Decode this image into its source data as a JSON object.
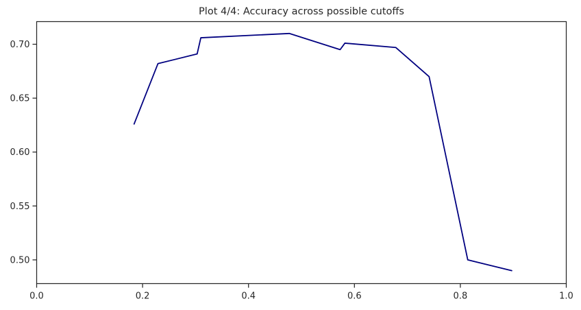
{
  "chart_data": {
    "type": "line",
    "title": "Plot 4/4: Accuracy across possible cutoffs",
    "xlabel": "",
    "ylabel": "",
    "xlim": [
      0.0,
      1.0
    ],
    "ylim": [
      0.478,
      0.721
    ],
    "grid": false,
    "x_ticks": [
      0.0,
      0.2,
      0.4,
      0.6,
      0.8,
      1.0
    ],
    "x_tick_labels": [
      "0.0",
      "0.2",
      "0.4",
      "0.6",
      "0.8",
      "1.0"
    ],
    "y_ticks": [
      0.5,
      0.55,
      0.6,
      0.65,
      0.7
    ],
    "y_tick_labels": [
      "0.50",
      "0.55",
      "0.60",
      "0.65",
      "0.70"
    ],
    "series": [
      {
        "color": "#000080",
        "x": [
          0.184,
          0.229,
          0.303,
          0.31,
          0.477,
          0.573,
          0.582,
          0.678,
          0.741,
          0.814,
          0.897
        ],
        "y": [
          0.626,
          0.682,
          0.691,
          0.706,
          0.71,
          0.695,
          0.701,
          0.697,
          0.67,
          0.5,
          0.49
        ]
      }
    ]
  }
}
